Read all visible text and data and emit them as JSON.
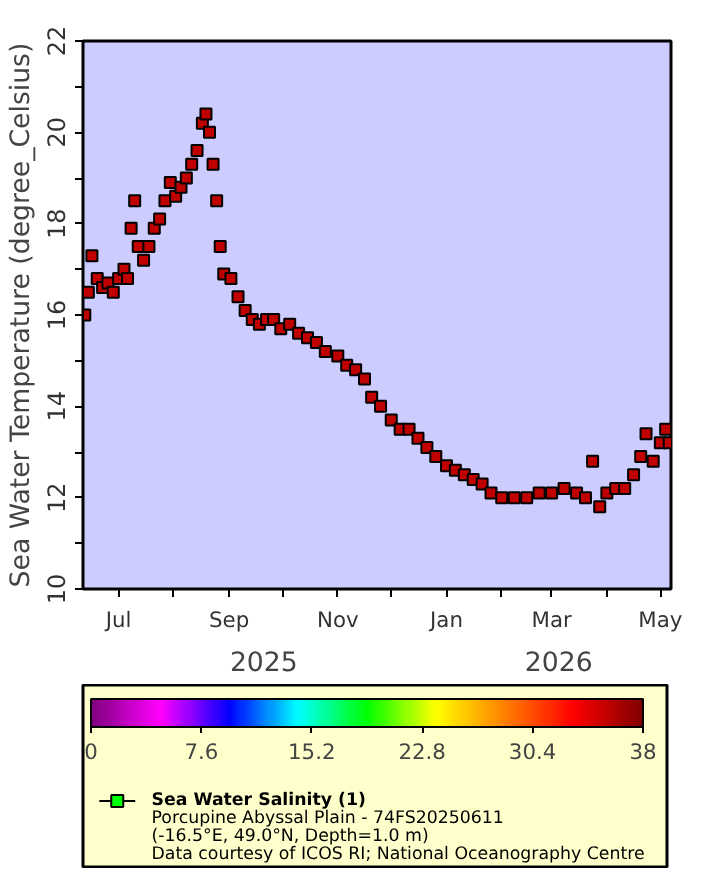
{
  "chart_data": {
    "type": "scatter",
    "ylabel": "Sea Water Temperature (degree_Celsius)",
    "clabel": null,
    "x": [
      "2025-06-12",
      "2025-06-14",
      "2025-06-16",
      "2025-06-19",
      "2025-06-22",
      "2025-06-25",
      "2025-06-28",
      "2025-07-01",
      "2025-07-04",
      "2025-07-06",
      "2025-07-08",
      "2025-07-10",
      "2025-07-12",
      "2025-07-15",
      "2025-07-18",
      "2025-07-21",
      "2025-07-24",
      "2025-07-27",
      "2025-07-30",
      "2025-08-02",
      "2025-08-05",
      "2025-08-08",
      "2025-08-11",
      "2025-08-14",
      "2025-08-17",
      "2025-08-19",
      "2025-08-21",
      "2025-08-23",
      "2025-08-25",
      "2025-08-27",
      "2025-08-29",
      "2025-09-02",
      "2025-09-06",
      "2025-09-10",
      "2025-09-14",
      "2025-09-18",
      "2025-09-22",
      "2025-09-26",
      "2025-09-30",
      "2025-10-05",
      "2025-10-10",
      "2025-10-15",
      "2025-10-20",
      "2025-10-25",
      "2025-11-01",
      "2025-11-06",
      "2025-11-11",
      "2025-11-16",
      "2025-11-20",
      "2025-11-25",
      "2025-12-01",
      "2025-12-06",
      "2025-12-11",
      "2025-12-16",
      "2025-12-21",
      "2025-12-26",
      "2026-01-01",
      "2026-01-06",
      "2026-01-11",
      "2026-01-16",
      "2026-01-21",
      "2026-01-26",
      "2026-02-01",
      "2026-02-08",
      "2026-02-15",
      "2026-02-22",
      "2026-03-01",
      "2026-03-08",
      "2026-03-15",
      "2026-03-20",
      "2026-03-24",
      "2026-03-28",
      "2026-04-01",
      "2026-04-06",
      "2026-04-11",
      "2026-04-16",
      "2026-04-20",
      "2026-04-23",
      "2026-04-27",
      "2026-05-01",
      "2026-05-04",
      "2026-05-06"
    ],
    "series": [
      {
        "name": "Sea Water Salinity (1)",
        "values": [
          16.0,
          16.5,
          17.3,
          16.8,
          16.6,
          16.7,
          16.5,
          16.8,
          17.0,
          16.8,
          17.9,
          18.5,
          17.5,
          17.2,
          17.5,
          17.9,
          18.1,
          18.5,
          18.9,
          18.6,
          18.8,
          19.0,
          19.3,
          19.6,
          20.2,
          20.4,
          20.0,
          19.3,
          18.5,
          17.5,
          16.9,
          16.8,
          16.4,
          16.1,
          15.9,
          15.8,
          15.9,
          15.9,
          15.7,
          15.8,
          15.6,
          15.5,
          15.4,
          15.2,
          15.1,
          14.9,
          14.8,
          14.6,
          14.2,
          14.0,
          13.7,
          13.5,
          13.5,
          13.3,
          13.1,
          12.9,
          12.7,
          12.6,
          12.5,
          12.4,
          12.3,
          12.1,
          12.0,
          12.0,
          12.0,
          12.1,
          12.1,
          12.2,
          12.1,
          12.0,
          12.8,
          11.8,
          12.1,
          12.2,
          12.2,
          12.5,
          12.9,
          13.4,
          12.8,
          13.2,
          13.5,
          13.2
        ],
        "cvalues": [
          35.5,
          35.5,
          35.5,
          35.5,
          35.5,
          35.5,
          35.5,
          35.5,
          35.5,
          35.5,
          35.5,
          35.5,
          35.5,
          35.5,
          35.5,
          35.5,
          35.5,
          35.5,
          35.5,
          35.5,
          35.5,
          35.5,
          35.5,
          35.5,
          35.5,
          35.5,
          35.5,
          35.5,
          35.5,
          35.5,
          35.5,
          35.5,
          35.5,
          35.5,
          35.5,
          35.5,
          35.5,
          35.5,
          35.5,
          35.5,
          35.5,
          35.5,
          35.5,
          35.5,
          35.5,
          35.5,
          35.5,
          35.5,
          35.5,
          35.5,
          35.5,
          35.5,
          35.5,
          35.5,
          35.5,
          35.5,
          35.5,
          35.5,
          35.5,
          35.5,
          35.5,
          35.5,
          35.5,
          35.5,
          35.5,
          35.5,
          35.5,
          35.5,
          35.5,
          35.5,
          35.5,
          35.5,
          35.5,
          35.5,
          35.5,
          35.5,
          35.5,
          35.5,
          35.5,
          35.5,
          35.5,
          35.5
        ]
      }
    ],
    "xlim": [
      "2025-06-11",
      "2026-05-07"
    ],
    "xticks": [
      {
        "value": "2025-07-01",
        "label": "Jul"
      },
      {
        "value": "2025-08-01",
        "label": null
      },
      {
        "value": "2025-09-01",
        "label": "Sep"
      },
      {
        "value": "2025-10-01",
        "label": null
      },
      {
        "value": "2025-11-01",
        "label": "Nov"
      },
      {
        "value": "2025-12-01",
        "label": null
      },
      {
        "value": "2026-01-01",
        "label": "Jan"
      },
      {
        "value": "2026-02-01",
        "label": null
      },
      {
        "value": "2026-03-01",
        "label": "Mar"
      },
      {
        "value": "2026-04-01",
        "label": null
      },
      {
        "value": "2026-05-01",
        "label": "May"
      }
    ],
    "ylim": [
      10,
      22
    ],
    "yticks": [
      10,
      {
        "value": 11,
        "label": null
      },
      12,
      {
        "value": 13,
        "label": null
      },
      14,
      {
        "value": 15,
        "label": null
      },
      16,
      {
        "value": 17,
        "label": null
      },
      18,
      {
        "value": 19,
        "label": null
      },
      20,
      {
        "value": 21,
        "label": null
      },
      22
    ],
    "clim": [
      0,
      38
    ],
    "cticks": [
      0,
      7.6,
      15.2,
      22.8,
      30.4,
      38
    ],
    "marker": "square",
    "grid": false,
    "legend": "bottom",
    "annotations": [
      "2025",
      "2026",
      "Porcupine Abyssal Plain - 74FS20250611",
      "(-16.5°E, 49.0°N, Depth=1.0 m)",
      "Data courtesy of ICOS RI; National Oceanography Centre"
    ]
  }
}
